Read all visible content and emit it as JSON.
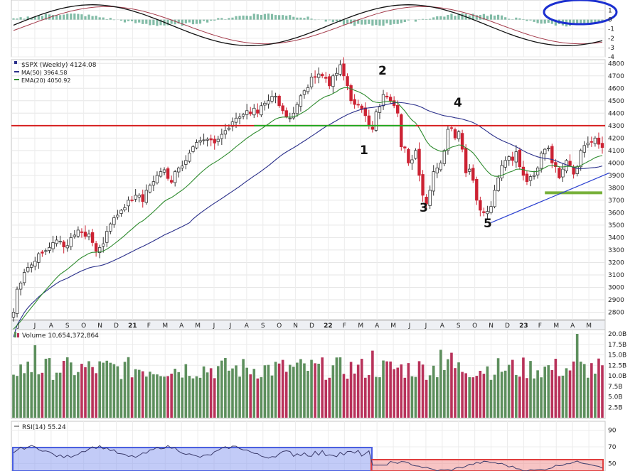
{
  "colors": {
    "up_candle": "#ffffff",
    "down_candle": "#cc2233",
    "ma50": "#2a2f8a",
    "ema20": "#2e8b2e",
    "resistance": "#d62020",
    "support_old": "#22aa22",
    "support_new": "#77b03a",
    "trendline": "#2a3fd0",
    "macd_hist": "#5aa58a",
    "rsi_blue_box": "#8fa0f0",
    "rsi_red_box": "#f08a8a",
    "vol_up": "#5d8f5d",
    "vol_down": "#b8325a",
    "circle": "#1b2fd0"
  },
  "price_panel": {
    "legend_title": "$SPX (Weekly) 4124.08",
    "legend_ma": "MA(50) 3964.58",
    "legend_ema": "EMA(20) 4050.92",
    "y_ticks": [
      "4800",
      "4700",
      "4600",
      "4500",
      "4400",
      "4300",
      "4200",
      "4100",
      "4000",
      "3900",
      "3800",
      "3700",
      "3600",
      "3500",
      "3400",
      "3300",
      "3200",
      "3100",
      "3000",
      "2900",
      "2800"
    ],
    "wave_labels": [
      "1",
      "2",
      "3",
      "4",
      "5"
    ]
  },
  "macd_panel": {
    "y_ticks": [
      "1",
      "0",
      "-1",
      "-2",
      "-3",
      "-4"
    ]
  },
  "volume_panel": {
    "legend": "Volume 10,654,372,864",
    "y_ticks": [
      "20.0B",
      "17.5B",
      "15.0B",
      "12.5B",
      "10.0B",
      "7.5B",
      "5.0B",
      "2.5B"
    ]
  },
  "rsi_panel": {
    "legend": "RSI(14) 55.24",
    "y_ticks": [
      "90",
      "70",
      "50"
    ]
  },
  "x_axis": {
    "labels": [
      "J",
      "J",
      "A",
      "S",
      "O",
      "N",
      "D",
      "21",
      "F",
      "M",
      "A",
      "M",
      "J",
      "J",
      "A",
      "S",
      "O",
      "N",
      "D",
      "22",
      "F",
      "M",
      "A",
      "M",
      "J",
      "J",
      "A",
      "S",
      "O",
      "N",
      "D",
      "23",
      "F",
      "M",
      "A",
      "M"
    ]
  },
  "chart_data": {
    "type": "candlestick",
    "title": "$SPX (Weekly)",
    "last_value": 4124.08,
    "ylim": [
      2740,
      4830
    ],
    "ylabel": "",
    "series": [
      {
        "name": "$SPX (Weekly)",
        "values": [
          2800,
          2985,
          3035,
          3120,
          3160,
          3180,
          3210,
          3270,
          3275,
          3295,
          3320,
          3360,
          3380,
          3370,
          3325,
          3335,
          3400,
          3420,
          3460,
          3440,
          3410,
          3430,
          3360,
          3290,
          3320,
          3350,
          3450,
          3510,
          3560,
          3580,
          3620,
          3640,
          3700,
          3700,
          3740,
          3740,
          3690,
          3780,
          3820,
          3850,
          3900,
          3930,
          3945,
          3875,
          3845,
          3930,
          3960,
          3975,
          4020,
          4080,
          4130,
          4165,
          4180,
          4185,
          4190,
          4185,
          4160,
          4190,
          4230,
          4260,
          4280,
          4330,
          4360,
          4370,
          4390,
          4420,
          4395,
          4440,
          4400,
          4460,
          4480,
          4500,
          4535,
          4535,
          4460,
          4420,
          4370,
          4360,
          4400,
          4470,
          4540,
          4580,
          4605,
          4690,
          4690,
          4715,
          4700,
          4680,
          4620,
          4700,
          4720,
          4790,
          4700,
          4620,
          4500,
          4470,
          4470,
          4430,
          4380,
          4300,
          4270,
          4410,
          4450,
          4550,
          4530,
          4500,
          4460,
          4400,
          4130,
          4120,
          4000,
          4025,
          4100,
          3900,
          3740,
          3670,
          3780,
          3930,
          3960,
          4000,
          4100,
          4270,
          4280,
          4200,
          4250,
          4110,
          3920,
          3950,
          3860,
          3700,
          3620,
          3600,
          3610,
          3650,
          3780,
          3880,
          3980,
          4020,
          4050,
          4020,
          4090,
          3970,
          3900,
          3850,
          3890,
          3900,
          3960,
          4080,
          4110,
          4120,
          4000,
          3970,
          3880,
          3950,
          4020,
          3980,
          3910,
          3970,
          4100,
          4140,
          4160,
          4170,
          4200,
          4150,
          4124.08
        ]
      },
      {
        "name": "MA(50)",
        "values": [
          3964.58
        ]
      },
      {
        "name": "EMA(20)",
        "values": [
          4050.92
        ]
      }
    ],
    "volume": {
      "name": "Volume",
      "ylim": [
        0,
        20000000000
      ],
      "last": 10654372864
    },
    "rsi": {
      "name": "RSI(14)",
      "last": 55.24,
      "ylim": [
        40,
        100
      ]
    },
    "macd": {
      "ylim": [
        -4,
        1.5
      ]
    },
    "horizontal_lines": [
      {
        "label": "resistance",
        "y": 4300
      },
      {
        "label": "prior support",
        "y": 4300
      },
      {
        "label": "support",
        "y": 3760
      }
    ],
    "grid": true
  }
}
